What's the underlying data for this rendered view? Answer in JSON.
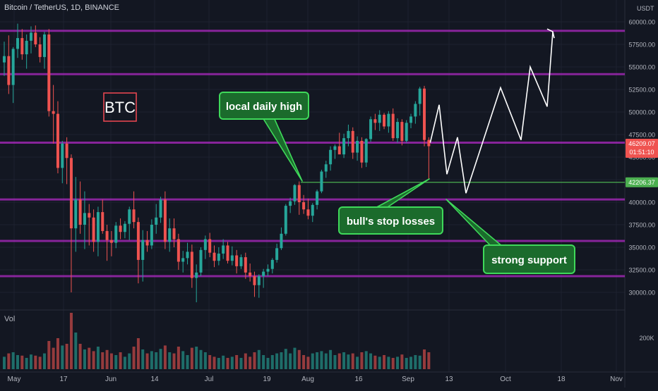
{
  "header": {
    "symbol_line": "Bitcoin / TetherUS, 1D, BINANCE",
    "currency": "USDT",
    "volume_label": "Vol"
  },
  "colors": {
    "background": "#131722",
    "up": "#26a69a",
    "down": "#ef5350",
    "purple_level": "#9c27b0",
    "support_line": "#4caf50",
    "callout_fill": "#1b6b2c",
    "callout_border": "#3fd95a",
    "btc_box": "#e5454f",
    "projection": "#ffffff"
  },
  "chart_data": {
    "type": "candlestick",
    "symbol": "Bitcoin / TetherUS",
    "interval": "1D",
    "exchange": "BINANCE",
    "y_axis": {
      "unit": "USDT",
      "range": [
        28000,
        62000
      ],
      "ticks": [
        "60000.00",
        "57500.00",
        "55000.00",
        "52500.00",
        "50000.00",
        "47500.00",
        "45000.00",
        "42500.00",
        "40000.00",
        "37500.00",
        "35000.00",
        "32500.00",
        "30000.00"
      ]
    },
    "x_axis": {
      "ticks": [
        "May",
        "17",
        "Jun",
        "14",
        "Jul",
        "19",
        "Aug",
        "16",
        "Sep",
        "13",
        "Oct",
        "18",
        "Nov"
      ]
    },
    "volume_axis": {
      "ticks": [
        "200K"
      ]
    },
    "price_labels": {
      "last_price": "46209.07",
      "countdown": "01:51:10",
      "support_price": "42206.37"
    },
    "horizontal_levels": [
      59000,
      54200,
      46600,
      40300,
      35700,
      31800
    ],
    "support_line": 42206.37,
    "annotations": {
      "btc_label": "BTC",
      "local_high": "local daily high",
      "stop_losses": "bull's stop losses",
      "strong_support": "strong support"
    },
    "projection_path": [
      46600,
      50800,
      43100,
      47200,
      41000,
      52700,
      46900,
      55000,
      50600,
      58900
    ],
    "candles": [
      [
        55500,
        57800,
        54000,
        56200
      ],
      [
        56200,
        58500,
        52000,
        53000
      ],
      [
        53000,
        57200,
        51000,
        57000
      ],
      [
        57000,
        59800,
        56000,
        58200
      ],
      [
        58200,
        59200,
        55800,
        56400
      ],
      [
        56400,
        58600,
        54800,
        57900
      ],
      [
        57900,
        59500,
        56500,
        58800
      ],
      [
        58800,
        59600,
        57200,
        57500
      ],
      [
        57500,
        58300,
        55500,
        56100
      ],
      [
        56100,
        58900,
        54800,
        58600
      ],
      [
        58600,
        59200,
        49500,
        50100
      ],
      [
        50100,
        53000,
        46500,
        49800
      ],
      [
        49800,
        51200,
        43200,
        43800
      ],
      [
        43800,
        46800,
        42100,
        46500
      ],
      [
        46500,
        47200,
        42000,
        44900
      ],
      [
        44900,
        45300,
        30000,
        37100
      ],
      [
        37100,
        42800,
        34500,
        40300
      ],
      [
        40300,
        42300,
        36500,
        37500
      ],
      [
        37500,
        41200,
        34800,
        38800
      ],
      [
        38800,
        39800,
        35200,
        38300
      ],
      [
        38300,
        39200,
        34500,
        35600
      ],
      [
        35600,
        39500,
        34000,
        38900
      ],
      [
        38900,
        40300,
        36500,
        36800
      ],
      [
        36800,
        37500,
        33500,
        35800
      ],
      [
        35800,
        36800,
        34000,
        35500
      ],
      [
        35500,
        37800,
        34900,
        37400
      ],
      [
        37400,
        38200,
        35900,
        36700
      ],
      [
        36700,
        37900,
        36000,
        37600
      ],
      [
        37600,
        39500,
        35800,
        39200
      ],
      [
        39200,
        41200,
        37100,
        37800
      ],
      [
        37800,
        38300,
        31000,
        33600
      ],
      [
        33600,
        36900,
        31200,
        35800
      ],
      [
        35800,
        36800,
        34500,
        35200
      ],
      [
        35200,
        38100,
        34800,
        37500
      ],
      [
        37500,
        39800,
        36500,
        38300
      ],
      [
        38300,
        40600,
        37700,
        40300
      ],
      [
        40300,
        41200,
        34800,
        35600
      ],
      [
        35600,
        38200,
        34500,
        37100
      ],
      [
        37100,
        38200,
        35000,
        35900
      ],
      [
        35900,
        36500,
        32500,
        33400
      ],
      [
        33400,
        34600,
        32200,
        33800
      ],
      [
        33800,
        35500,
        33100,
        34500
      ],
      [
        34500,
        35300,
        30500,
        31600
      ],
      [
        31600,
        33100,
        28900,
        32200
      ],
      [
        32200,
        35000,
        31800,
        34700
      ],
      [
        34700,
        36300,
        33700,
        35900
      ],
      [
        35900,
        36600,
        33900,
        34400
      ],
      [
        34400,
        35200,
        32800,
        33500
      ],
      [
        33500,
        35000,
        33000,
        34300
      ],
      [
        34300,
        35900,
        33700,
        35200
      ],
      [
        35200,
        35600,
        33200,
        33500
      ],
      [
        33500,
        35100,
        33000,
        34100
      ],
      [
        34100,
        34700,
        32100,
        32900
      ],
      [
        32900,
        34200,
        32600,
        33900
      ],
      [
        33900,
        34400,
        31500,
        32200
      ],
      [
        32200,
        33200,
        31200,
        31800
      ],
      [
        31800,
        32300,
        29500,
        30800
      ],
      [
        30800,
        32000,
        29400,
        31800
      ],
      [
        31800,
        32600,
        30500,
        32300
      ],
      [
        32300,
        33100,
        31800,
        32600
      ],
      [
        32600,
        33800,
        32100,
        33600
      ],
      [
        33600,
        35400,
        33300,
        34900
      ],
      [
        34900,
        37200,
        34700,
        36500
      ],
      [
        36500,
        39800,
        36300,
        39600
      ],
      [
        39600,
        40500,
        38800,
        40100
      ],
      [
        40100,
        42000,
        39700,
        41900
      ],
      [
        41900,
        42300,
        38600,
        40000
      ],
      [
        40000,
        40800,
        38700,
        39200
      ],
      [
        39200,
        40400,
        38100,
        38500
      ],
      [
        38500,
        39900,
        37800,
        39700
      ],
      [
        39700,
        41400,
        39200,
        41200
      ],
      [
        41200,
        43600,
        41000,
        43400
      ],
      [
        43400,
        44600,
        42700,
        44200
      ],
      [
        44200,
        46200,
        43500,
        45800
      ],
      [
        45800,
        46400,
        44800,
        46200
      ],
      [
        46200,
        47700,
        45500,
        45300
      ],
      [
        45300,
        47600,
        44900,
        47100
      ],
      [
        47100,
        48600,
        46200,
        47900
      ],
      [
        47900,
        48300,
        44800,
        45500
      ],
      [
        45500,
        47300,
        44600,
        46800
      ],
      [
        46800,
        47200,
        43800,
        44400
      ],
      [
        44400,
        47100,
        43900,
        47000
      ],
      [
        47000,
        49500,
        46700,
        49200
      ],
      [
        49200,
        49800,
        48000,
        48800
      ],
      [
        48800,
        50200,
        47900,
        49700
      ],
      [
        49700,
        49900,
        48100,
        48400
      ],
      [
        48400,
        50100,
        47700,
        49800
      ],
      [
        49800,
        50400,
        46800,
        47100
      ],
      [
        47100,
        49300,
        46600,
        48900
      ],
      [
        48900,
        49200,
        46300,
        46800
      ],
      [
        46800,
        49100,
        46600,
        48800
      ],
      [
        48800,
        49800,
        48200,
        49500
      ],
      [
        49500,
        51200,
        48700,
        50900
      ],
      [
        50900,
        52800,
        49600,
        52600
      ],
      [
        52600,
        52900,
        46200,
        46900
      ],
      [
        46900,
        47200,
        42600,
        46209
      ]
    ],
    "volume_ratio": [
      0.22,
      0.28,
      0.3,
      0.25,
      0.24,
      0.2,
      0.26,
      0.24,
      0.22,
      0.28,
      0.5,
      0.38,
      0.55,
      0.42,
      0.45,
      1.0,
      0.65,
      0.45,
      0.35,
      0.38,
      0.32,
      0.4,
      0.3,
      0.34,
      0.28,
      0.25,
      0.3,
      0.22,
      0.28,
      0.4,
      0.55,
      0.35,
      0.28,
      0.32,
      0.3,
      0.36,
      0.42,
      0.3,
      0.28,
      0.4,
      0.32,
      0.25,
      0.38,
      0.4,
      0.34,
      0.3,
      0.25,
      0.22,
      0.2,
      0.24,
      0.2,
      0.22,
      0.25,
      0.2,
      0.28,
      0.22,
      0.3,
      0.34,
      0.25,
      0.2,
      0.25,
      0.28,
      0.3,
      0.36,
      0.28,
      0.38,
      0.34,
      0.25,
      0.22,
      0.28,
      0.3,
      0.32,
      0.28,
      0.34,
      0.25,
      0.28,
      0.3,
      0.26,
      0.28,
      0.22,
      0.3,
      0.32,
      0.28,
      0.24,
      0.22,
      0.25,
      0.22,
      0.2,
      0.22,
      0.26,
      0.2,
      0.22,
      0.25,
      0.24,
      0.35,
      0.3
    ]
  }
}
